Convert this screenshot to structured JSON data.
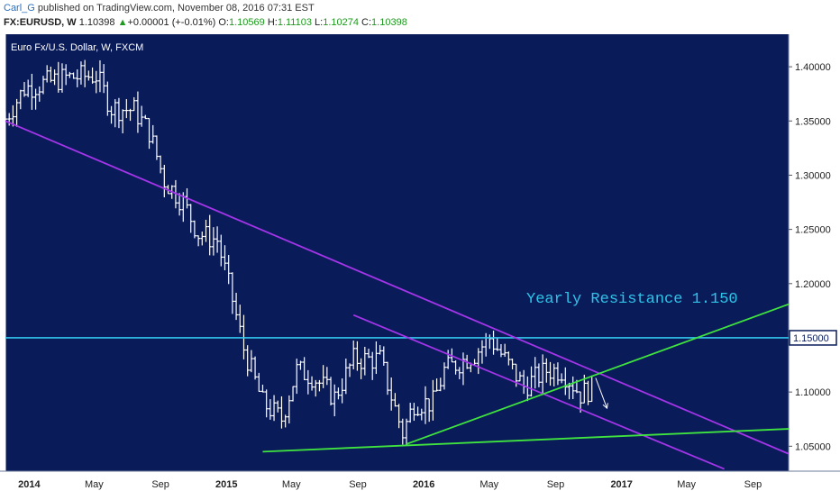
{
  "header": {
    "user": "Carl_G",
    "published_text": "published on TradingView.com, November 08, 2016 07:31 EST",
    "symbol": "FX:EURUSD, W",
    "last": "1.10398",
    "arrow": "▲",
    "change": "+0.00001 (+-0.01%)",
    "o_label": "O:",
    "o_value": "1.10569",
    "h_label": "H:",
    "h_value": "1.11103",
    "l_label": "L:",
    "l_value": "1.10274",
    "c_label": "C:",
    "c_value": "1.10398"
  },
  "chart": {
    "title": "Euro Fx/U.S. Dollar, W, FXCM",
    "annotation": "Yearly Resistance 1.150",
    "price_badge": "1.15000",
    "colors": {
      "background": "#0a1b5a",
      "bars": "#ffffff",
      "resistance": "#33c8ee",
      "channel": "#a335e8",
      "trend": "#3fe43f",
      "annotation": "#2ec4e8",
      "badge_bg": "#ffffff",
      "badge_text": "#0a1b5a"
    }
  },
  "chart_data": {
    "type": "ohlc",
    "ylim": [
      1.027,
      1.43
    ],
    "yticks": [
      "1.40000",
      "1.35000",
      "1.30000",
      "1.25000",
      "1.20000",
      "1.15000",
      "1.10000",
      "1.05000"
    ],
    "ytick_values": [
      1.4,
      1.35,
      1.3,
      1.25,
      1.2,
      1.15,
      1.1,
      1.05
    ],
    "xticks": [
      "2014",
      "May",
      "Sep",
      "2015",
      "May",
      "Sep",
      "2016",
      "May",
      "Sep",
      "2017",
      "May",
      "Sep"
    ],
    "xtick_dates": [
      "2014-01-01",
      "2014-05-01",
      "2014-09-01",
      "2015-01-01",
      "2015-05-01",
      "2015-09-01",
      "2016-01-01",
      "2016-05-01",
      "2016-09-01",
      "2017-01-01",
      "2017-05-01",
      "2017-09-01"
    ],
    "x_range": [
      "2013-11-18",
      "2017-11-06"
    ],
    "close_series_anchors": [
      {
        "date": "2013-11-18",
        "close": 1.352
      },
      {
        "date": "2013-12-23",
        "close": 1.38
      },
      {
        "date": "2014-03-10",
        "close": 1.39
      },
      {
        "date": "2014-05-05",
        "close": 1.392
      },
      {
        "date": "2014-06-02",
        "close": 1.362
      },
      {
        "date": "2014-07-14",
        "close": 1.36
      },
      {
        "date": "2014-08-11",
        "close": 1.34
      },
      {
        "date": "2014-09-08",
        "close": 1.295
      },
      {
        "date": "2014-10-13",
        "close": 1.275
      },
      {
        "date": "2014-11-10",
        "close": 1.246
      },
      {
        "date": "2014-12-15",
        "close": 1.24
      },
      {
        "date": "2015-01-12",
        "close": 1.185
      },
      {
        "date": "2015-02-02",
        "close": 1.14
      },
      {
        "date": "2015-03-09",
        "close": 1.09
      },
      {
        "date": "2015-04-13",
        "close": 1.075
      },
      {
        "date": "2015-05-11",
        "close": 1.12
      },
      {
        "date": "2015-06-08",
        "close": 1.115
      },
      {
        "date": "2015-07-20",
        "close": 1.095
      },
      {
        "date": "2015-08-24",
        "close": 1.13
      },
      {
        "date": "2015-10-12",
        "close": 1.13
      },
      {
        "date": "2015-11-23",
        "close": 1.062
      },
      {
        "date": "2015-12-14",
        "close": 1.09
      },
      {
        "date": "2016-01-18",
        "close": 1.09
      },
      {
        "date": "2016-02-08",
        "close": 1.12
      },
      {
        "date": "2016-04-04",
        "close": 1.135
      },
      {
        "date": "2016-05-02",
        "close": 1.15
      },
      {
        "date": "2016-06-06",
        "close": 1.125
      },
      {
        "date": "2016-07-04",
        "close": 1.105
      },
      {
        "date": "2016-08-15",
        "close": 1.12
      },
      {
        "date": "2016-09-12",
        "close": 1.12
      },
      {
        "date": "2016-10-17",
        "close": 1.098
      },
      {
        "date": "2016-11-07",
        "close": 1.104
      }
    ],
    "horizontal_lines": [
      {
        "name": "Yearly Resistance",
        "value": 1.15
      }
    ],
    "trend_lines": [
      {
        "color": "channel",
        "from": {
          "date": "2013-11-18",
          "value": 1.35
        },
        "to": {
          "date": "2017-11-06",
          "value": 1.043
        }
      },
      {
        "color": "channel",
        "from": {
          "date": "2015-08-24",
          "value": 1.171
        },
        "to": {
          "date": "2017-07-10",
          "value": 1.029
        }
      },
      {
        "color": "trend",
        "from": {
          "date": "2015-03-09",
          "value": 1.045
        },
        "to": {
          "date": "2017-11-06",
          "value": 1.066
        }
      },
      {
        "color": "trend",
        "from": {
          "date": "2015-11-30",
          "value": 1.052
        },
        "to": {
          "date": "2017-11-06",
          "value": 1.181
        }
      }
    ],
    "arrow": {
      "from": {
        "date": "2016-11-14",
        "value": 1.113
      },
      "to": {
        "date": "2016-12-05",
        "value": 1.085
      }
    }
  }
}
